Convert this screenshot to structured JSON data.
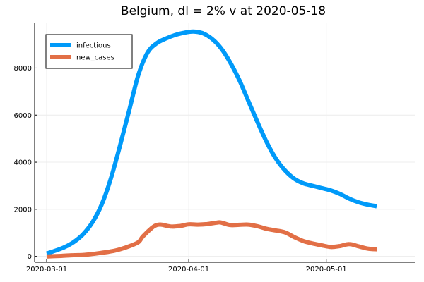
{
  "chart_data": {
    "type": "line",
    "title": "Belgium,  dl = 2% v at 2020-05-18",
    "xlabel": "",
    "ylabel": "",
    "x_ticks": [
      "2020-03-01",
      "2020-04-01",
      "2020-05-01"
    ],
    "y_ticks": [
      "0",
      "2000",
      "4000",
      "6000",
      "8000"
    ],
    "xlim": [
      "2020-03-01",
      "2020-05-18"
    ],
    "ylim": [
      -250,
      9900
    ],
    "grid": true,
    "legend_position": "top-left",
    "series": [
      {
        "name": "infectious",
        "color": "#009af9",
        "points": [
          [
            "2020-03-01",
            120
          ],
          [
            "2020-03-03",
            250
          ],
          [
            "2020-03-05",
            400
          ],
          [
            "2020-03-07",
            620
          ],
          [
            "2020-03-09",
            950
          ],
          [
            "2020-03-11",
            1450
          ],
          [
            "2020-03-13",
            2200
          ],
          [
            "2020-03-15",
            3300
          ],
          [
            "2020-03-17",
            4700
          ],
          [
            "2020-03-19",
            6200
          ],
          [
            "2020-03-21",
            7700
          ],
          [
            "2020-03-23",
            8650
          ],
          [
            "2020-03-25",
            9050
          ],
          [
            "2020-03-27",
            9250
          ],
          [
            "2020-03-29",
            9400
          ],
          [
            "2020-03-31",
            9500
          ],
          [
            "2020-04-02",
            9550
          ],
          [
            "2020-04-04",
            9480
          ],
          [
            "2020-04-06",
            9250
          ],
          [
            "2020-04-08",
            8850
          ],
          [
            "2020-04-10",
            8250
          ],
          [
            "2020-04-12",
            7500
          ],
          [
            "2020-04-14",
            6600
          ],
          [
            "2020-04-16",
            5700
          ],
          [
            "2020-04-18",
            4850
          ],
          [
            "2020-04-20",
            4150
          ],
          [
            "2020-04-22",
            3650
          ],
          [
            "2020-04-24",
            3300
          ],
          [
            "2020-04-26",
            3100
          ],
          [
            "2020-04-28",
            3000
          ],
          [
            "2020-04-30",
            2900
          ],
          [
            "2020-05-02",
            2800
          ],
          [
            "2020-05-04",
            2650
          ],
          [
            "2020-05-06",
            2450
          ],
          [
            "2020-05-08",
            2300
          ],
          [
            "2020-05-10",
            2200
          ],
          [
            "2020-05-12",
            2130
          ]
        ]
      },
      {
        "name": "new_cases",
        "color": "#e26f46",
        "points": [
          [
            "2020-03-01",
            0
          ],
          [
            "2020-03-03",
            10
          ],
          [
            "2020-03-05",
            30
          ],
          [
            "2020-03-07",
            50
          ],
          [
            "2020-03-09",
            60
          ],
          [
            "2020-03-11",
            100
          ],
          [
            "2020-03-13",
            150
          ],
          [
            "2020-03-15",
            210
          ],
          [
            "2020-03-17",
            300
          ],
          [
            "2020-03-19",
            430
          ],
          [
            "2020-03-21",
            600
          ],
          [
            "2020-03-22",
            850
          ],
          [
            "2020-03-24",
            1220
          ],
          [
            "2020-03-25",
            1330
          ],
          [
            "2020-03-26",
            1350
          ],
          [
            "2020-03-28",
            1270
          ],
          [
            "2020-03-30",
            1290
          ],
          [
            "2020-04-01",
            1360
          ],
          [
            "2020-04-03",
            1350
          ],
          [
            "2020-04-05",
            1370
          ],
          [
            "2020-04-07",
            1430
          ],
          [
            "2020-04-08",
            1440
          ],
          [
            "2020-04-10",
            1330
          ],
          [
            "2020-04-12",
            1340
          ],
          [
            "2020-04-14",
            1350
          ],
          [
            "2020-04-16",
            1280
          ],
          [
            "2020-04-18",
            1170
          ],
          [
            "2020-04-20",
            1100
          ],
          [
            "2020-04-22",
            1020
          ],
          [
            "2020-04-24",
            820
          ],
          [
            "2020-04-26",
            650
          ],
          [
            "2020-04-28",
            550
          ],
          [
            "2020-04-30",
            470
          ],
          [
            "2020-05-02",
            400
          ],
          [
            "2020-05-04",
            440
          ],
          [
            "2020-05-06",
            520
          ],
          [
            "2020-05-08",
            430
          ],
          [
            "2020-05-10",
            330
          ],
          [
            "2020-05-12",
            300
          ]
        ]
      }
    ]
  }
}
